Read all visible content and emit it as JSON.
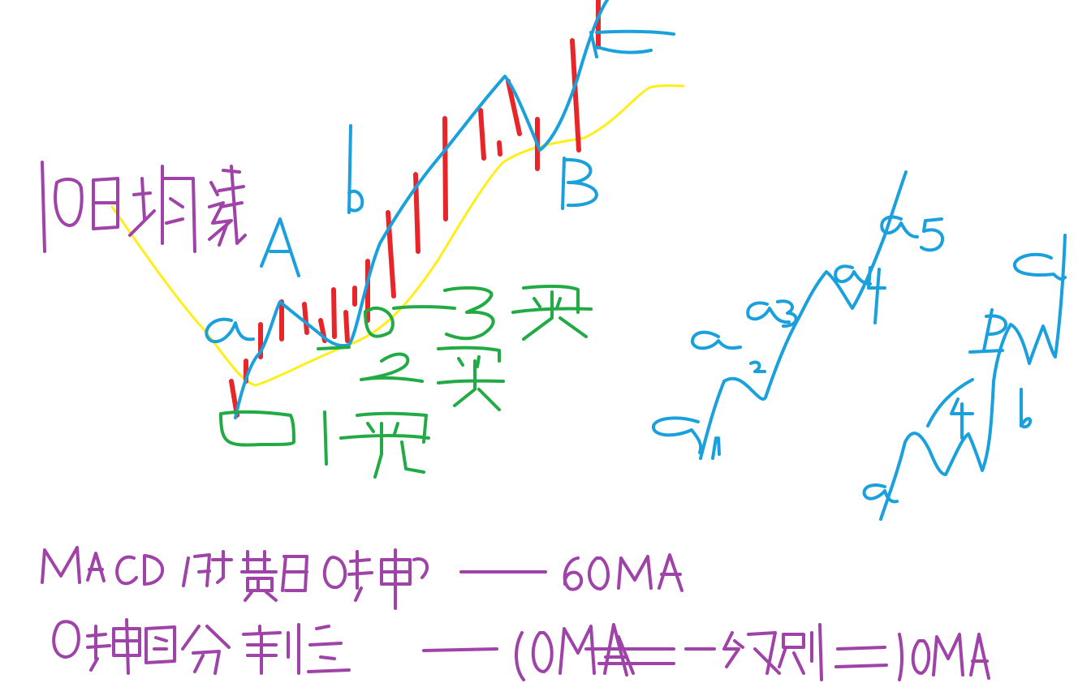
{
  "colors": {
    "red": "#e8262a",
    "blue": "#1aa0dc",
    "yellow": "#ffee1a",
    "green": "#22aa44",
    "purple": "#a043a8",
    "background": "#ffffff"
  },
  "labels": {
    "ma_title": "10日均线",
    "point_A": "A",
    "point_a": "a",
    "point_b": "b",
    "point_B": "B",
    "buy1": "1买",
    "buy2": "2买",
    "buy3": "3买",
    "a5": "a5",
    "a4": "a4",
    "a3": "a3",
    "a2": "a2",
    "a1": "a1",
    "n_c": "c",
    "n_b": "b",
    "n_6": "6",
    "n_4": "4",
    "n_a": "a",
    "line1_left": "MACD的黄白0轴",
    "line1_right": "60MA",
    "line2_left": "0轴图分割",
    "line2_mid": "10MA",
    "line2_right": "级别",
    "line2_end": "10MA",
    "eq": "="
  }
}
